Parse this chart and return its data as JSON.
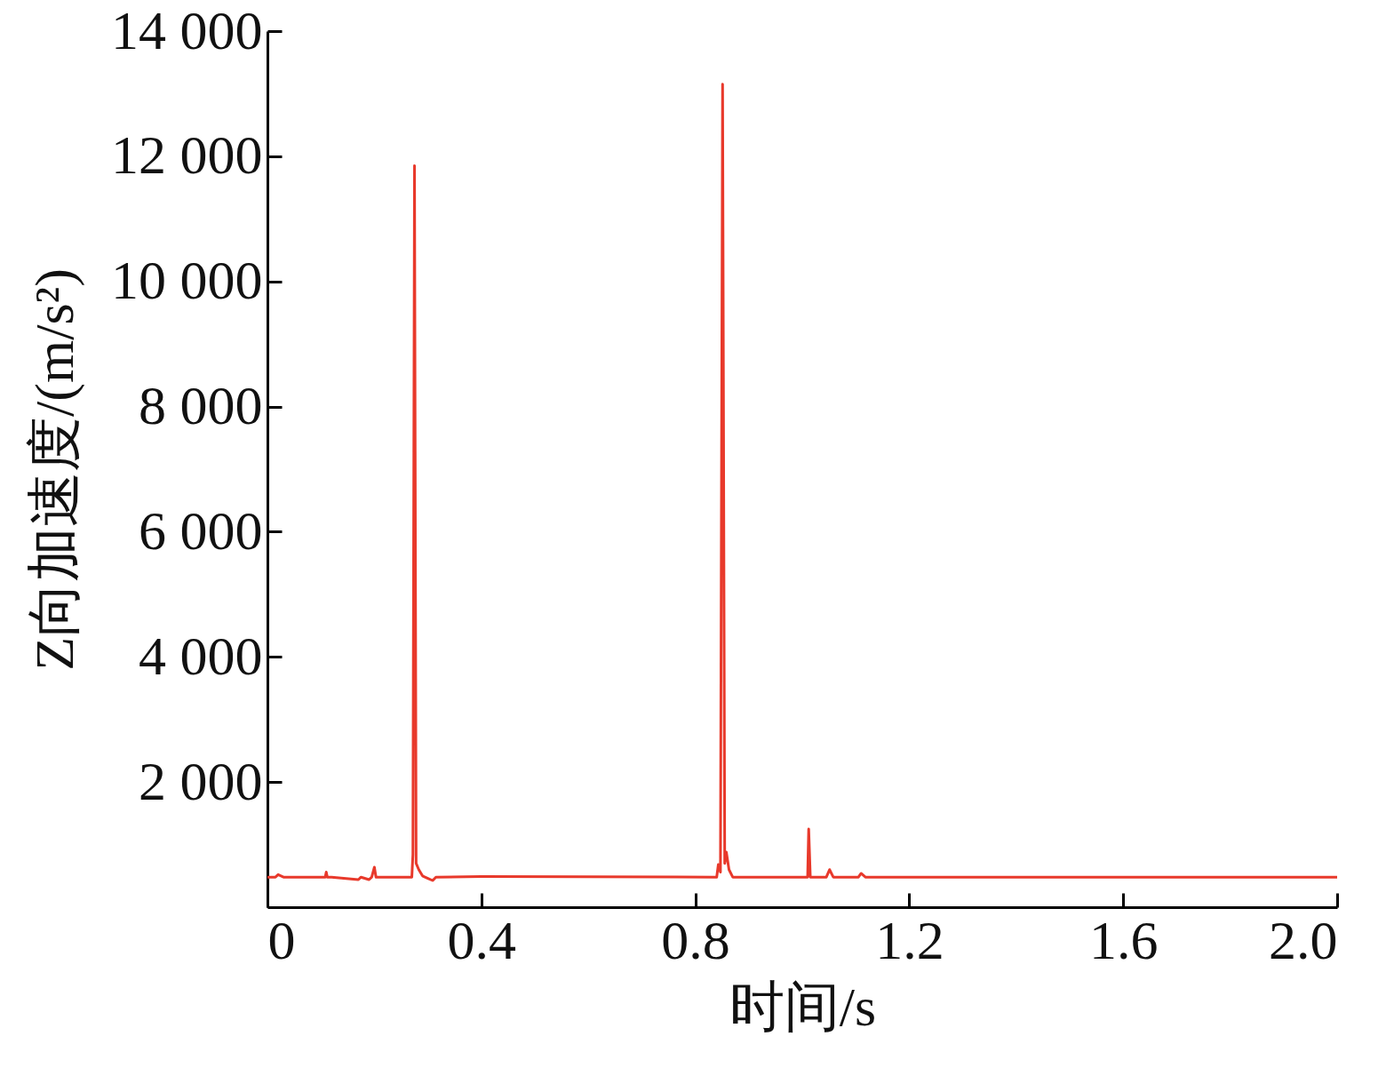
{
  "chart_data": {
    "type": "line",
    "xlabel": "时间/s",
    "ylabel": "Z向加速度/(m/s²)",
    "xlim": [
      0,
      2.0
    ],
    "xticks": [
      0,
      0.4,
      0.8,
      1.2,
      1.6,
      {
        "value": 2.0,
        "label": "2.0"
      }
    ],
    "ylim": [
      0,
      14000
    ],
    "yticks": [
      {
        "value": 2000,
        "label": "2 000"
      },
      {
        "value": 4000,
        "label": "4 000"
      },
      {
        "value": 6000,
        "label": "6 000"
      },
      {
        "value": 8000,
        "label": "8 000"
      },
      {
        "value": 10000,
        "label": "10 000"
      },
      {
        "value": 12000,
        "label": "12 000"
      },
      {
        "value": 14000,
        "label": "14 000"
      }
    ],
    "grid": false,
    "marker": "none",
    "line_style": "solid",
    "series": [
      {
        "color": "#e8392b",
        "x": [
          0,
          0.015,
          0.02,
          0.03,
          0.108,
          0.11,
          0.112,
          0.12,
          0.17,
          0.175,
          0.19,
          0.195,
          0.2,
          0.203,
          0.27,
          0.272,
          0.275,
          0.278,
          0.283,
          0.29,
          0.3,
          0.309,
          0.315,
          0.4,
          0.84,
          0.843,
          0.847,
          0.851,
          0.855,
          0.858,
          0.863,
          0.87,
          1.01,
          1.012,
          1.015,
          1.045,
          1.051,
          1.058,
          1.105,
          1.11,
          1.118,
          2.0
        ],
        "values": [
          480,
          480,
          520,
          480,
          480,
          560,
          480,
          480,
          440,
          480,
          440,
          480,
          640,
          480,
          480,
          840,
          11850,
          700,
          600,
          500,
          460,
          426,
          480,
          490,
          480,
          680,
          560,
          13150,
          700,
          880,
          600,
          480,
          480,
          1250,
          480,
          480,
          600,
          480,
          480,
          540,
          480,
          480
        ]
      }
    ]
  }
}
